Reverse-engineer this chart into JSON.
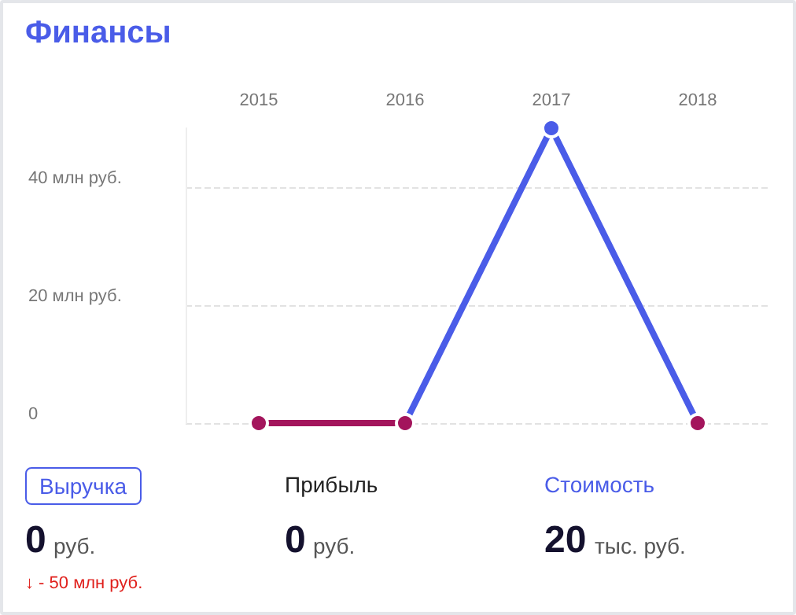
{
  "chart_data": [
    {
      "type": "line",
      "title": "Финансы",
      "categories": [
        "2015",
        "2016",
        "2017",
        "2018"
      ],
      "series": [
        {
          "color": "#4a5ce8",
          "values": [
            null,
            0,
            50,
            0
          ],
          "colors": [
            null,
            "#a3155c",
            "#4a5ce8",
            "#a3155c"
          ]
        },
        {
          "color": "#a3155c",
          "values": [
            0,
            0,
            null,
            null
          ]
        }
      ],
      "ylim": [
        0,
        50
      ],
      "yticks": [
        {
          "value": 0,
          "label": "0"
        },
        {
          "value": 20,
          "label": "20 млн руб."
        },
        {
          "value": 40,
          "label": "40 млн руб."
        }
      ],
      "grid": "y",
      "marker": "circle",
      "line_style": "solid"
    },
    {
      "type": "other",
      "annotations": [
        "Выручка",
        "0",
        "руб.",
        "↓ - 50 млн руб.",
        "Прибыль",
        "0",
        "руб.",
        "Стоимость",
        "20",
        "тыс. руб."
      ]
    }
  ]
}
